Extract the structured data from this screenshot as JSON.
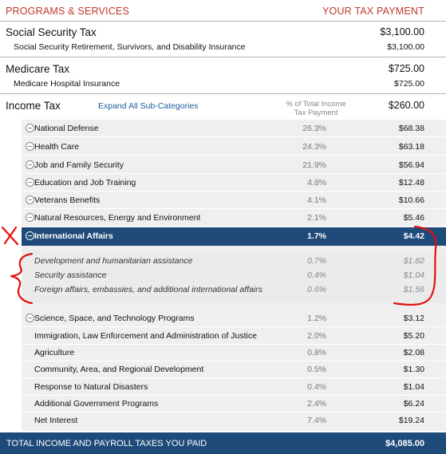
{
  "header": {
    "left": "PROGRAMS & SERVICES",
    "right": "YOUR TAX PAYMENT"
  },
  "social_security": {
    "title": "Social Security Tax",
    "amount": "$3,100.00",
    "sub_label": "Social Security Retirement, Survivors, and Disability Insurance",
    "sub_amount": "$3,100.00"
  },
  "medicare": {
    "title": "Medicare Tax",
    "amount": "$725.00",
    "sub_label": "Medicare Hospital Insurance",
    "sub_amount": "$725.00"
  },
  "income_tax": {
    "title": "Income Tax",
    "expand_link": "Expand All Sub-Categories",
    "col_line1": "% of Total Income",
    "col_line2": "Tax Payment",
    "amount": "$260.00",
    "rows": [
      {
        "label": "National Defense",
        "pct": "26.3%",
        "amt": "$68.38"
      },
      {
        "label": "Health Care",
        "pct": "24.3%",
        "amt": "$63.18"
      },
      {
        "label": "Job and Family Security",
        "pct": "21.9%",
        "amt": "$56.94"
      },
      {
        "label": "Education and Job Training",
        "pct": "4.8%",
        "amt": "$12.48"
      },
      {
        "label": "Veterans Benefits",
        "pct": "4.1%",
        "amt": "$10.66"
      },
      {
        "label": "Natural Resources, Energy and Environment",
        "pct": "2.1%",
        "amt": "$5.46"
      },
      {
        "label": "International Affairs",
        "pct": "1.7%",
        "amt": "$4.42"
      }
    ],
    "sub_rows": [
      {
        "label": "Development and humanitarian assistance",
        "pct": "0.7%",
        "amt": "$1.82"
      },
      {
        "label": "Security assistance",
        "pct": "0.4%",
        "amt": "$1.04"
      },
      {
        "label": "Foreign affairs, embassies, and additional international affairs",
        "pct": "0.6%",
        "amt": "$1.56"
      }
    ],
    "rows_after": [
      {
        "label": "Science, Space, and Technology Programs",
        "pct": "1.2%",
        "amt": "$3.12"
      },
      {
        "label": "Immigration, Law Enforcement and Administration of Justice",
        "pct": "2.0%",
        "amt": "$5.20"
      },
      {
        "label": "Agriculture",
        "pct": "0.8%",
        "amt": "$2.08"
      },
      {
        "label": "Community, Area, and Regional Development",
        "pct": "0.5%",
        "amt": "$1.30"
      },
      {
        "label": "Response to Natural Disasters",
        "pct": "0.4%",
        "amt": "$1.04"
      },
      {
        "label": "Additional Government Programs",
        "pct": "2.4%",
        "amt": "$6.24"
      },
      {
        "label": "Net Interest",
        "pct": "7.4%",
        "amt": "$19.24"
      }
    ]
  },
  "footer": {
    "label": "TOTAL INCOME AND PAYROLL TAXES YOU PAID",
    "amount": "$4,085.00"
  },
  "colors": {
    "accent_red": "#c0382b",
    "highlight_blue": "#1f4b7a",
    "link_blue": "#1f5c9c",
    "annotation_red": "#e01010"
  }
}
